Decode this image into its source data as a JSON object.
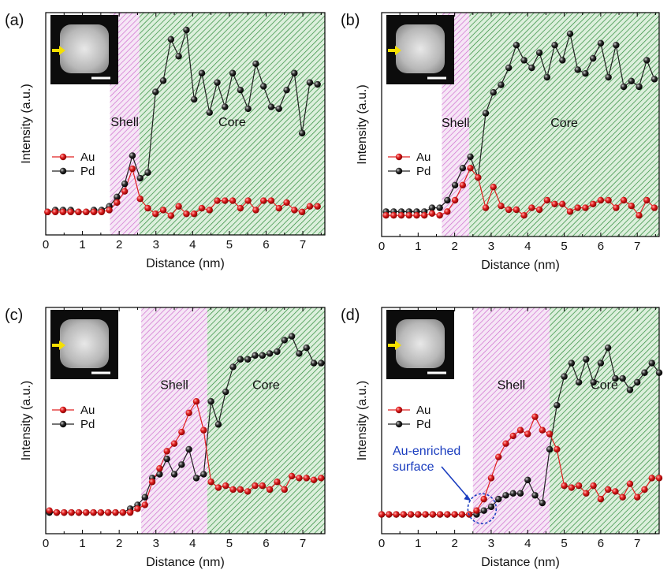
{
  "figure": {
    "series_colors": {
      "Au": "#e02020",
      "Pd": "#202020"
    },
    "shell_color": "#cc66cc",
    "core_color": "#2e8b3a",
    "arrow_color": "#f5e000"
  },
  "chart_data": [
    {
      "panel_label": "(a)",
      "type": "line",
      "xlabel": "Distance (nm)",
      "ylabel": "Intensity (a.u.)",
      "xlim": [
        0,
        7.6
      ],
      "ylim": [
        0,
        100
      ],
      "xticks": [
        "0",
        "1",
        "2",
        "3",
        "4",
        "5",
        "6",
        "7"
      ],
      "regions": [
        {
          "label": "Shell",
          "x0": 1.75,
          "x1": 2.55
        },
        {
          "label": "Core",
          "x0": 2.55,
          "x1": 7.6
        }
      ],
      "legend": [
        "Au",
        "Pd"
      ],
      "legend_position": "middle-left",
      "inset": {
        "description": "STEM image of nanocube",
        "position": "top-left",
        "has_scale_bar": true,
        "has_arrow": true
      },
      "series": [
        {
          "name": "Au",
          "x": [
            0.05,
            0.26,
            0.47,
            0.68,
            0.89,
            1.1,
            1.31,
            1.52,
            1.73,
            1.94,
            2.15,
            2.36,
            2.57,
            2.78,
            2.99,
            3.2,
            3.41,
            3.62,
            3.83,
            4.04,
            4.25,
            4.46,
            4.67,
            4.88,
            5.09,
            5.3,
            5.51,
            5.72,
            5.93,
            6.14,
            6.35,
            6.56,
            6.77,
            6.98,
            7.19,
            7.4
          ],
          "y": [
            3,
            3,
            3,
            3,
            3,
            3,
            3,
            3,
            4,
            8,
            14,
            26,
            10,
            5,
            2,
            4,
            1,
            6,
            2,
            2,
            5,
            4,
            9,
            9,
            9,
            5,
            9,
            4,
            9,
            9,
            5,
            8,
            4,
            3,
            6,
            6
          ]
        },
        {
          "name": "Pd",
          "x": [
            0.05,
            0.26,
            0.47,
            0.68,
            0.89,
            1.1,
            1.31,
            1.52,
            1.73,
            1.94,
            2.15,
            2.36,
            2.57,
            2.78,
            2.99,
            3.2,
            3.41,
            3.62,
            3.83,
            4.04,
            4.25,
            4.46,
            4.67,
            4.88,
            5.09,
            5.3,
            5.51,
            5.72,
            5.93,
            6.14,
            6.35,
            6.56,
            6.77,
            6.98,
            7.19,
            7.4
          ],
          "y": [
            3,
            4,
            4,
            4,
            3,
            3,
            4,
            4,
            6,
            11,
            18,
            33,
            21,
            24,
            67,
            73,
            95,
            86,
            100,
            63,
            77,
            56,
            72,
            59,
            77,
            68,
            58,
            82,
            70,
            59,
            58,
            68,
            77,
            45,
            72,
            71
          ]
        }
      ]
    },
    {
      "panel_label": "(b)",
      "type": "line",
      "xlabel": "Distance (nm)",
      "ylabel": "Intensity (a.u.)",
      "xlim": [
        0,
        7.6
      ],
      "ylim": [
        0,
        100
      ],
      "xticks": [
        "0",
        "1",
        "2",
        "3",
        "4",
        "5",
        "6",
        "7"
      ],
      "regions": [
        {
          "label": "Shell",
          "x0": 1.65,
          "x1": 2.4
        },
        {
          "label": "Core",
          "x0": 2.4,
          "x1": 7.6
        }
      ],
      "legend": [
        "Au",
        "Pd"
      ],
      "legend_position": "middle-left",
      "inset": {
        "description": "STEM image of nanocube",
        "position": "top-left",
        "has_scale_bar": true,
        "has_arrow": true
      },
      "series": [
        {
          "name": "Au",
          "x": [
            0.12,
            0.33,
            0.54,
            0.75,
            0.96,
            1.17,
            1.38,
            1.59,
            1.8,
            2.01,
            2.22,
            2.43,
            2.64,
            2.85,
            3.06,
            3.27,
            3.48,
            3.69,
            3.9,
            4.11,
            4.32,
            4.53,
            4.74,
            4.95,
            5.16,
            5.37,
            5.58,
            5.79,
            6.0,
            6.21,
            6.42,
            6.63,
            6.84,
            7.05,
            7.26,
            7.47
          ],
          "y": [
            2,
            2,
            2,
            2,
            2,
            2,
            3,
            2,
            4,
            10,
            18,
            27,
            22,
            6,
            17,
            7,
            5,
            5,
            2,
            6,
            5,
            10,
            8,
            8,
            4,
            6,
            6,
            8,
            10,
            10,
            6,
            10,
            7,
            2,
            10,
            6
          ]
        },
        {
          "name": "Pd",
          "x": [
            0.12,
            0.33,
            0.54,
            0.75,
            0.96,
            1.17,
            1.38,
            1.59,
            1.8,
            2.01,
            2.22,
            2.43,
            2.64,
            2.85,
            3.06,
            3.27,
            3.48,
            3.69,
            3.9,
            4.11,
            4.32,
            4.53,
            4.74,
            4.95,
            5.16,
            5.37,
            5.58,
            5.79,
            6.0,
            6.21,
            6.42,
            6.63,
            6.84,
            7.05,
            7.26,
            7.47
          ],
          "y": [
            4,
            4,
            4,
            4,
            4,
            4,
            6,
            6,
            10,
            18,
            27,
            33,
            22,
            56,
            67,
            71,
            80,
            92,
            84,
            80,
            88,
            75,
            92,
            84,
            98,
            79,
            77,
            85,
            93,
            75,
            92,
            70,
            73,
            70,
            84,
            74
          ]
        }
      ]
    },
    {
      "panel_label": "(c)",
      "type": "line",
      "xlabel": "Distance (nm)",
      "ylabel": "Intensity (a.u.)",
      "xlim": [
        0,
        7.6
      ],
      "ylim": [
        0,
        100
      ],
      "xticks": [
        "0",
        "1",
        "2",
        "3",
        "4",
        "5",
        "6",
        "7"
      ],
      "regions": [
        {
          "label": "Shell",
          "x0": 2.6,
          "x1": 4.4
        },
        {
          "label": "Core",
          "x0": 4.4,
          "x1": 7.6
        }
      ],
      "legend": [
        "Au",
        "Pd"
      ],
      "legend_position": "middle-left",
      "inset": {
        "description": "STEM image of nanocube",
        "position": "top-left",
        "has_scale_bar": true,
        "has_arrow": true
      },
      "series": [
        {
          "name": "Au",
          "x": [
            0.1,
            0.3,
            0.5,
            0.7,
            0.9,
            1.1,
            1.3,
            1.5,
            1.7,
            1.9,
            2.1,
            2.3,
            2.5,
            2.7,
            2.9,
            3.1,
            3.3,
            3.5,
            3.7,
            3.9,
            4.1,
            4.3,
            4.5,
            4.7,
            4.9,
            5.1,
            5.3,
            5.5,
            5.7,
            5.9,
            6.1,
            6.3,
            6.5,
            6.7,
            6.9,
            7.1,
            7.3,
            7.5
          ],
          "y": [
            3,
            2,
            2,
            2,
            2,
            2,
            2,
            2,
            2,
            2,
            2,
            2,
            4,
            6,
            18,
            25,
            34,
            38,
            44,
            54,
            60,
            45,
            18,
            15,
            16,
            14,
            14,
            13,
            16,
            16,
            14,
            18,
            14,
            21,
            20,
            20,
            19,
            20
          ]
        },
        {
          "name": "Pd",
          "x": [
            0.1,
            0.3,
            0.5,
            0.7,
            0.9,
            1.1,
            1.3,
            1.5,
            1.7,
            1.9,
            2.1,
            2.3,
            2.5,
            2.7,
            2.9,
            3.1,
            3.3,
            3.5,
            3.7,
            3.9,
            4.1,
            4.3,
            4.5,
            4.7,
            4.9,
            5.1,
            5.3,
            5.5,
            5.7,
            5.9,
            6.1,
            6.3,
            6.5,
            6.7,
            6.9,
            7.1,
            7.3,
            7.5
          ],
          "y": [
            2,
            2,
            2,
            2,
            2,
            2,
            2,
            2,
            2,
            2,
            2,
            4,
            6,
            10,
            20,
            22,
            30,
            22,
            27,
            35,
            20,
            22,
            60,
            48,
            65,
            78,
            82,
            82,
            84,
            84,
            85,
            86,
            92,
            94,
            85,
            88,
            80,
            80
          ]
        }
      ]
    },
    {
      "panel_label": "(d)",
      "type": "line",
      "xlabel": "Distance (nm)",
      "ylabel": "Intensity (a.u.)",
      "xlim": [
        0,
        7.6
      ],
      "ylim": [
        0,
        100
      ],
      "xticks": [
        "0",
        "1",
        "2",
        "3",
        "4",
        "5",
        "6",
        "7"
      ],
      "regions": [
        {
          "label": "Shell",
          "x0": 2.5,
          "x1": 4.6
        },
        {
          "label": "Core",
          "x0": 4.6,
          "x1": 7.6
        }
      ],
      "legend": [
        "Au",
        "Pd"
      ],
      "legend_position": "middle-left",
      "annotation": {
        "text_line1": "Au-enriched",
        "text_line2": "surface",
        "color": "#1a3dbf",
        "target_x": 2.75
      },
      "inset": {
        "description": "STEM image of nanocube",
        "position": "top-left",
        "has_scale_bar": true,
        "has_arrow": true
      },
      "series": [
        {
          "name": "Au",
          "x": [
            0.0,
            0.2,
            0.4,
            0.6,
            0.8,
            1.0,
            1.2,
            1.4,
            1.6,
            1.8,
            2.0,
            2.2,
            2.4,
            2.6,
            2.8,
            3.0,
            3.2,
            3.4,
            3.6,
            3.8,
            4.0,
            4.2,
            4.4,
            4.6,
            4.8,
            5.0,
            5.2,
            5.4,
            5.6,
            5.8,
            6.0,
            6.2,
            6.4,
            6.6,
            6.8,
            7.0,
            7.2,
            7.4,
            7.6
          ],
          "y": [
            1,
            1,
            1,
            1,
            1,
            1,
            1,
            1,
            1,
            1,
            1,
            1,
            1,
            3,
            9,
            20,
            31,
            38,
            42,
            45,
            43,
            52,
            45,
            43,
            35,
            16,
            15,
            16,
            12,
            16,
            9,
            14,
            13,
            10,
            17,
            10,
            14,
            20,
            20
          ]
        },
        {
          "name": "Pd",
          "x": [
            0.0,
            0.2,
            0.4,
            0.6,
            0.8,
            1.0,
            1.2,
            1.4,
            1.6,
            1.8,
            2.0,
            2.2,
            2.4,
            2.6,
            2.8,
            3.0,
            3.2,
            3.4,
            3.6,
            3.8,
            4.0,
            4.2,
            4.4,
            4.6,
            4.8,
            5.0,
            5.2,
            5.4,
            5.6,
            5.8,
            6.0,
            6.2,
            6.4,
            6.6,
            6.8,
            7.0,
            7.2,
            7.4,
            7.6
          ],
          "y": [
            1,
            1,
            1,
            1,
            1,
            1,
            1,
            1,
            1,
            1,
            1,
            1,
            1,
            1,
            3,
            5,
            9,
            11,
            12,
            12,
            19,
            11,
            7,
            35,
            58,
            73,
            80,
            70,
            82,
            70,
            80,
            88,
            72,
            72,
            66,
            70,
            75,
            80,
            75
          ]
        }
      ]
    }
  ]
}
